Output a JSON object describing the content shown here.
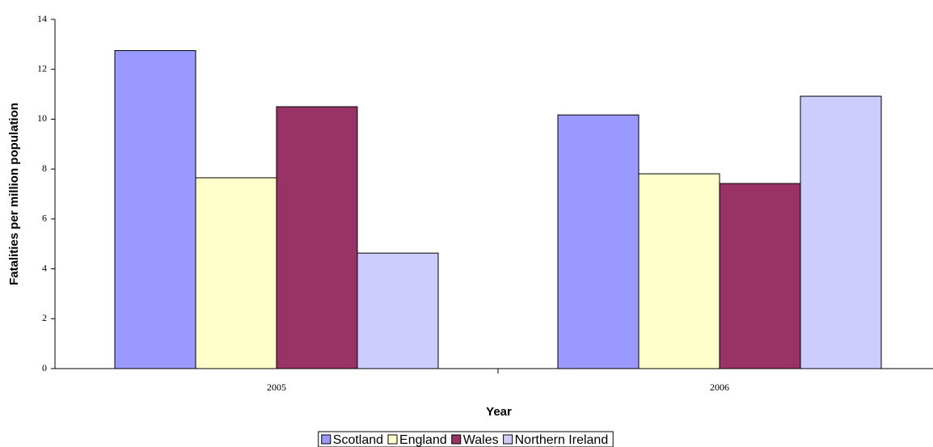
{
  "chart_data": {
    "type": "bar",
    "categories": [
      "2005",
      "2006"
    ],
    "series": [
      {
        "name": "Scotland",
        "color": "#9999ff",
        "values": [
          12.75,
          10.17
        ]
      },
      {
        "name": "England",
        "color": "#ffffcc",
        "values": [
          7.65,
          7.81
        ]
      },
      {
        "name": "Wales",
        "color": "#993366",
        "values": [
          10.5,
          7.42
        ]
      },
      {
        "name": "Northern Ireland",
        "color": "#ccccff",
        "values": [
          4.63,
          10.92
        ]
      }
    ],
    "xlabel": "Year",
    "ylabel": "Fatalities per million population",
    "ylim": [
      0,
      14
    ],
    "yticks": [
      0,
      2,
      4,
      6,
      8,
      10,
      12,
      14
    ],
    "legend": "bottom"
  }
}
